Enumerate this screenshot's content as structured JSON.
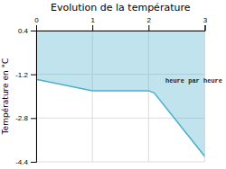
{
  "chart_data": {
    "type": "area",
    "title": "Evolution de la température",
    "y_label": "Température en °C",
    "x": [
      0,
      1.0,
      2.0,
      2.1,
      3.0
    ],
    "values": [
      -1.38,
      -1.8,
      -1.8,
      -1.88,
      -4.2
    ],
    "color": "#4ab0cc",
    "xlim": [
      0,
      3
    ],
    "xticks": [
      0,
      1,
      2,
      3
    ],
    "ylim": [
      -4.4,
      0.4
    ],
    "yticks": [
      0.4,
      -1.2,
      -2.8,
      -4.4
    ],
    "grid": true,
    "annotations": [
      {
        "text": "heure par heure",
        "x": 2.3,
        "y": -1.35
      }
    ]
  }
}
